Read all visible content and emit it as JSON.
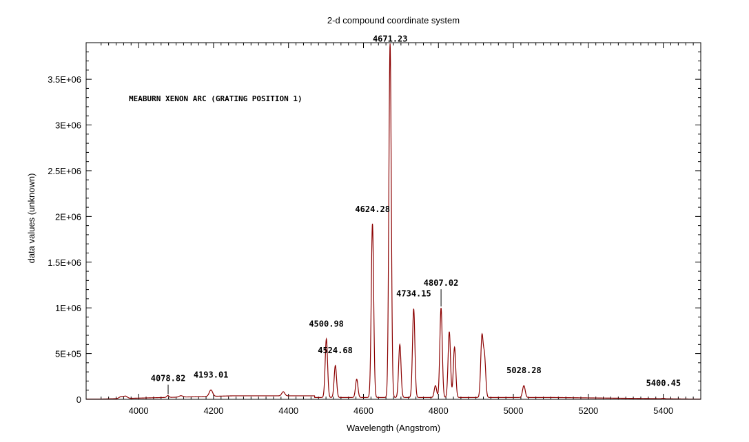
{
  "chart_data": {
    "type": "line",
    "title": "2-d compound coordinate system",
    "xlabel": "Wavelength (Angstrom)",
    "ylabel": "data values (unknown)",
    "annotation": "MEABURN XENON ARC (GRATING POSITION 1)",
    "xlim": [
      3860,
      5500
    ],
    "ylim": [
      0,
      3900000
    ],
    "x_ticks": [
      4000,
      4200,
      4400,
      4600,
      4800,
      5000,
      5200,
      5400
    ],
    "y_ticks": [
      0,
      500000,
      1000000,
      1500000,
      2000000,
      2500000,
      3000000,
      3500000
    ],
    "x_tick_labels": [
      "4000",
      "4200",
      "4400",
      "4600",
      "4800",
      "5000",
      "5200",
      "5400"
    ],
    "y_tick_labels": [
      "0",
      "5E+05",
      "1E+06",
      "1.5E+06",
      "2E+06",
      "2.5E+06",
      "3E+06",
      "3.5E+06"
    ],
    "grid": false,
    "line_color": "#8b0000",
    "series": [
      {
        "peaks": [
          {
            "x": 3953,
            "y": 20000,
            "w": 5
          },
          {
            "x": 3965,
            "y": 25000,
            "w": 5
          },
          {
            "x": 4078,
            "y": 20000,
            "w": 3
          },
          {
            "x": 4113,
            "y": 15000,
            "w": 5
          },
          {
            "x": 4193,
            "y": 70000,
            "w": 4.5
          },
          {
            "x": 4386,
            "y": 45000,
            "w": 4
          },
          {
            "x": 4501,
            "y": 640000,
            "w": 3.2
          },
          {
            "x": 4525,
            "y": 350000,
            "w": 3.2
          },
          {
            "x": 4582,
            "y": 200000,
            "w": 3.2
          },
          {
            "x": 4624,
            "y": 1900000,
            "w": 3.2
          },
          {
            "x": 4671,
            "y": 3870000,
            "w": 3.2
          },
          {
            "x": 4697,
            "y": 580000,
            "w": 3.2
          },
          {
            "x": 4734,
            "y": 970000,
            "w": 3.2
          },
          {
            "x": 4792,
            "y": 130000,
            "w": 3.2
          },
          {
            "x": 4807,
            "y": 980000,
            "w": 3.2
          },
          {
            "x": 4829,
            "y": 720000,
            "w": 3.2
          },
          {
            "x": 4843,
            "y": 550000,
            "w": 3.2
          },
          {
            "x": 4916,
            "y": 650000,
            "w": 3.2
          },
          {
            "x": 4923,
            "y": 430000,
            "w": 3.2
          },
          {
            "x": 5028,
            "y": 130000,
            "w": 3.5
          },
          {
            "x": 5400,
            "y": 5000,
            "w": 3
          }
        ]
      }
    ],
    "line_labels": [
      {
        "text": "4078.82",
        "x": 4078.82,
        "tick": true,
        "dy": 17
      },
      {
        "text": "4193.01",
        "x": 4193.01,
        "tick": false,
        "dy": 14
      },
      {
        "text": "4500.98",
        "x": 4500.98,
        "tick": false,
        "dy": 14
      },
      {
        "text": "4524.68",
        "x": 4524.68,
        "tick": false,
        "dy": 14
      },
      {
        "text": "4624.28",
        "x": 4624.28,
        "tick": false,
        "dy": 14
      },
      {
        "text": "4671.23",
        "x": 4671.23,
        "tick": false,
        "dy": 0
      },
      {
        "text": "4734.15",
        "x": 4734.15,
        "tick": false,
        "dy": 14
      },
      {
        "text": "4807.02",
        "x": 4807.02,
        "tick": true,
        "dy": 28
      },
      {
        "text": "5028.28",
        "x": 5028.28,
        "tick": false,
        "dy": 14
      },
      {
        "text": "5400.45",
        "x": 5400.45,
        "tick": false,
        "dy": 14
      }
    ]
  }
}
